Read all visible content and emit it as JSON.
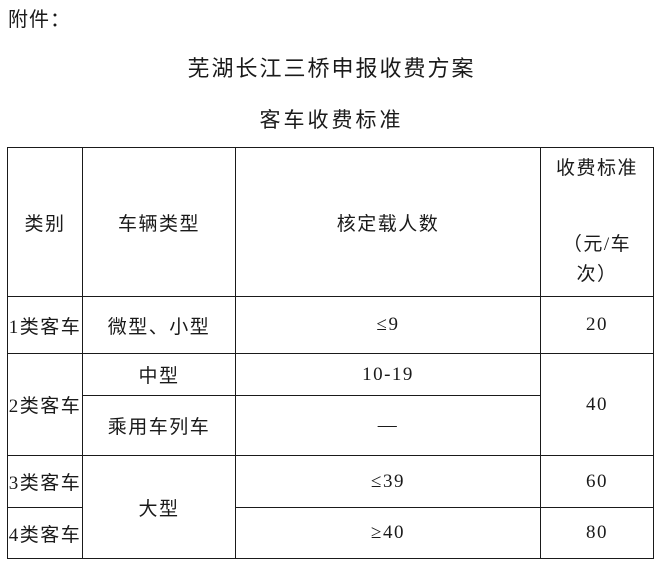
{
  "page": {
    "attachment_label": "附件：",
    "title": "芜湖长江三桥申报收费方案",
    "subtitle": "客车收费标准"
  },
  "table": {
    "headers": {
      "category": "类别",
      "vehicle_type": "车辆类型",
      "capacity": "核定载人数",
      "fee_line1": "收费标准",
      "fee_line2": "（元/车",
      "fee_line3": "次）"
    },
    "rows": [
      {
        "category": "1类客车",
        "vehicle_type": "微型、小型",
        "capacity": "≤9",
        "fee": "20"
      },
      {
        "category": "2类客车",
        "vehicle_type": "中型",
        "capacity": "10-19",
        "fee": "40"
      },
      {
        "vehicle_type": "乘用车列车",
        "capacity": "—"
      },
      {
        "category": "3类客车",
        "vehicle_type": "大型",
        "capacity": "≤39",
        "fee": "60"
      },
      {
        "category": "4类客车",
        "capacity": "≥40",
        "fee": "80"
      }
    ]
  }
}
